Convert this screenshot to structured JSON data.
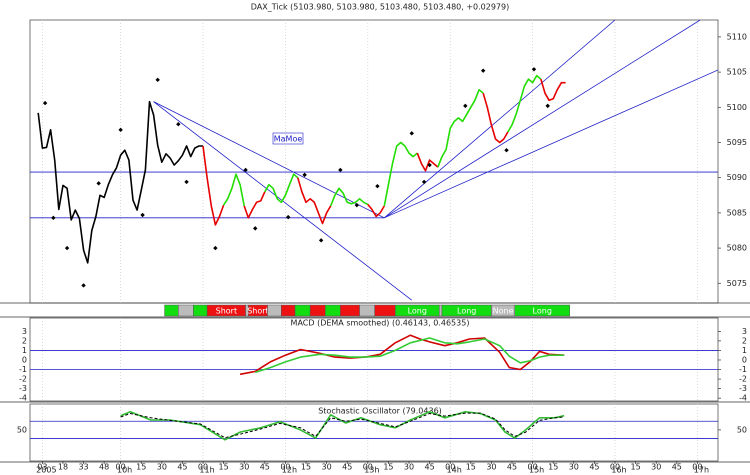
{
  "chart_data": [
    {
      "type": "line",
      "title": "DAX_Tick (5103.980, 5103.980, 5103.480, 5103.480, +0.02979)",
      "xlim": [
        -6,
        495
      ],
      "ylim": [
        5072.2,
        5112.4
      ],
      "yticks": [
        5075,
        5080,
        5085,
        5090,
        5095,
        5100,
        5105,
        5110
      ],
      "annotation": "MaMoe",
      "series": [
        {
          "color": "#000000",
          "x": [
            0,
            3,
            6,
            9,
            12,
            15,
            18,
            21,
            24,
            27,
            30,
            33,
            36,
            39,
            42,
            45,
            48,
            51,
            54,
            57,
            60,
            63,
            66,
            69,
            72,
            75,
            78,
            81,
            84,
            87,
            90,
            93,
            96,
            99,
            102,
            105,
            108,
            111,
            114,
            117,
            120
          ],
          "values": [
            5099.2,
            5094.2,
            5094.3,
            5096.8,
            5092.5,
            5085.5,
            5088.9,
            5088.5,
            5084.0,
            5085.4,
            5084.2,
            5079.7,
            5077.9,
            5082.5,
            5084.5,
            5087.5,
            5087.2,
            5089.0,
            5090.4,
            5091.4,
            5093.2,
            5093.9,
            5092.5,
            5086.8,
            5085.4,
            5088.2,
            5091.1,
            5100.8,
            5098.9,
            5094.6,
            5092.2,
            5093.4,
            5092.8,
            5091.8,
            5092.4,
            5093.2,
            5094.5,
            5093.0,
            5094.2,
            5094.5,
            5094.5
          ]
        },
        {
          "color": "#e60000",
          "x": [
            120,
            123,
            126,
            129,
            132,
            135
          ],
          "values": [
            5094.5,
            5090,
            5086,
            5083.3,
            5084.5,
            5086.1
          ]
        },
        {
          "color": "#22dd00",
          "x": [
            135,
            138,
            141,
            144,
            147,
            150
          ],
          "values": [
            5086.1,
            5087,
            5088.5,
            5090.5,
            5089,
            5086
          ]
        },
        {
          "color": "#e60000",
          "x": [
            150,
            153,
            156,
            159,
            162,
            165
          ],
          "values": [
            5086,
            5084.3,
            5085.5,
            5086.5,
            5086.7,
            5088
          ]
        },
        {
          "color": "#22dd00",
          "x": [
            165,
            168,
            171,
            174,
            177,
            180,
            183,
            186,
            189
          ],
          "values": [
            5088,
            5089,
            5088.5,
            5087,
            5086.5,
            5087.5,
            5089,
            5090.5,
            5090
          ]
        },
        {
          "color": "#e60000",
          "x": [
            189,
            192,
            195,
            198,
            201,
            204,
            207,
            210,
            213
          ],
          "values": [
            5090,
            5088,
            5086.5,
            5087,
            5086.5,
            5085,
            5083.5,
            5085,
            5086
          ]
        },
        {
          "color": "#22dd00",
          "x": [
            213,
            216,
            219,
            222,
            225,
            228,
            231,
            234,
            237,
            240
          ],
          "values": [
            5086,
            5087.5,
            5088.5,
            5087.8,
            5086.5,
            5086.3,
            5086.5,
            5087,
            5086.5,
            5086.2
          ]
        },
        {
          "color": "#e60000",
          "x": [
            240,
            243,
            246,
            249,
            252
          ],
          "values": [
            5086.2,
            5085.5,
            5084.5,
            5085,
            5086
          ]
        },
        {
          "color": "#22dd00",
          "x": [
            252,
            255,
            258,
            261,
            264,
            267,
            270,
            273,
            276
          ],
          "values": [
            5086,
            5089,
            5092,
            5094.5,
            5095,
            5094.5,
            5093.5,
            5093,
            5093.5
          ]
        },
        {
          "color": "#e60000",
          "x": [
            276,
            279,
            282,
            285,
            288,
            291
          ],
          "values": [
            5093.5,
            5092,
            5091,
            5092.5,
            5092,
            5091.5
          ]
        },
        {
          "color": "#22dd00",
          "x": [
            291,
            294,
            297,
            300,
            303,
            306,
            309,
            312,
            315,
            318,
            321,
            324
          ],
          "values": [
            5091.5,
            5093,
            5094,
            5097,
            5098,
            5098.5,
            5098,
            5099,
            5100,
            5101,
            5102.5,
            5102
          ]
        },
        {
          "color": "#e60000",
          "x": [
            324,
            327,
            330,
            333,
            336,
            339,
            342
          ],
          "values": [
            5102,
            5100,
            5097.5,
            5095.5,
            5095,
            5095.5,
            5096.5
          ]
        },
        {
          "color": "#22dd00",
          "x": [
            342,
            345,
            348,
            351,
            354,
            357,
            360,
            363,
            366
          ],
          "values": [
            5096.5,
            5097.5,
            5099,
            5101,
            5103,
            5104,
            5103.5,
            5104.5,
            5104
          ]
        },
        {
          "color": "#e60000",
          "x": [
            366,
            369,
            372,
            375,
            378,
            381,
            384
          ],
          "values": [
            5104,
            5102,
            5101,
            5101.2,
            5102.5,
            5103.5,
            5103.5
          ]
        }
      ],
      "markers": {
        "color": "#000000",
        "x": [
          5,
          11,
          21,
          33,
          44,
          60,
          76,
          87,
          102,
          108,
          129,
          151,
          158,
          182,
          194,
          206,
          220,
          232,
          247,
          272,
          281,
          285,
          311,
          324,
          341,
          361,
          371
        ],
        "values": [
          5100.6,
          5084.3,
          5080,
          5074.7,
          5089.2,
          5096.8,
          5084.7,
          5103.9,
          5097.6,
          5089.4,
          5080,
          5091.1,
          5082.8,
          5084.4,
          5090.4,
          5081.1,
          5091.1,
          5086.1,
          5088.8,
          5096.3,
          5089.4,
          5091.8,
          5100.2,
          5105.2,
          5093.9,
          5105.4,
          5100.2
        ]
      },
      "trendlines": {
        "color": "#2020c8",
        "lines": [
          {
            "x": [
              -6,
              495
            ],
            "values": [
              5090.8,
              5090.8
            ]
          },
          {
            "x": [
              -6,
              252
            ],
            "values": [
              5084.3,
              5084.3
            ]
          },
          {
            "x": [
              252,
              495
            ],
            "values": [
              5084.3,
              5105.3
            ]
          },
          {
            "x": [
              252,
              420
            ],
            "values": [
              5084.3,
              5112.4
            ]
          },
          {
            "x": [
              252,
              482
            ],
            "values": [
              5084.3,
              5112.4
            ]
          },
          {
            "x": [
              84,
              272
            ],
            "values": [
              5100.8,
              5072.6
            ]
          },
          {
            "x": [
              84,
              252
            ],
            "values": [
              5100.8,
              5084.3
            ]
          }
        ]
      },
      "signals": [
        {
          "start": 92,
          "end": 102,
          "color": "#11dd11"
        },
        {
          "start": 102,
          "end": 113,
          "color": "#bbbbbb"
        },
        {
          "start": 113,
          "end": 123,
          "color": "#11dd11"
        },
        {
          "start": 123,
          "end": 151,
          "color": "#ee1111",
          "label": "Short"
        },
        {
          "start": 151,
          "end": 153,
          "color": "#bbbbbb"
        },
        {
          "start": 153,
          "end": 167,
          "color": "#ee1111",
          "label": "Short"
        },
        {
          "start": 167,
          "end": 177,
          "color": "#bbbbbb"
        },
        {
          "start": 177,
          "end": 187,
          "color": "#ee1111"
        },
        {
          "start": 187,
          "end": 198,
          "color": "#11dd11"
        },
        {
          "start": 198,
          "end": 209,
          "color": "#ee1111"
        },
        {
          "start": 209,
          "end": 220,
          "color": "#11dd11"
        },
        {
          "start": 220,
          "end": 234,
          "color": "#ee1111"
        },
        {
          "start": 234,
          "end": 245,
          "color": "#bbbbbb"
        },
        {
          "start": 245,
          "end": 260,
          "color": "#ee1111"
        },
        {
          "start": 260,
          "end": 292,
          "color": "#11dd11",
          "label": "Long"
        },
        {
          "start": 292,
          "end": 294,
          "color": "#bbbbbb"
        },
        {
          "start": 294,
          "end": 330,
          "color": "#11dd11",
          "label": "Long"
        },
        {
          "start": 330,
          "end": 347,
          "color": "#bbbbbb",
          "label": "None"
        },
        {
          "start": 347,
          "end": 387,
          "color": "#11dd11",
          "label": "Long"
        }
      ]
    },
    {
      "type": "line",
      "title": "MACD (DEMA smoothed) (0.46143, 0.46535)",
      "xlim": [
        -6,
        495
      ],
      "ylim": [
        -4.3,
        4.4
      ],
      "yticks": [
        3,
        2,
        1,
        0,
        -1,
        -2,
        -3,
        -4
      ],
      "hlines": [
        1,
        -1
      ],
      "series": [
        {
          "color": "#d00000",
          "x": [
            147,
            158,
            169,
            180,
            191,
            198,
            205,
            216,
            227,
            238,
            249,
            260,
            271,
            278,
            285,
            296,
            305,
            314,
            325,
            336,
            343,
            351,
            358,
            365,
            372,
            383
          ],
          "values": [
            -1.5,
            -1.2,
            -0.2,
            0.5,
            1.1,
            0.9,
            0.7,
            0.3,
            0.2,
            0.3,
            0.6,
            1.8,
            2.6,
            2.2,
            1.9,
            1.5,
            1.8,
            2.2,
            2.3,
            0.8,
            -0.8,
            -1,
            -0.2,
            0.9,
            0.6,
            0.5
          ]
        },
        {
          "color": "#33cc33",
          "x": [
            158,
            169,
            180,
            191,
            205,
            216,
            227,
            238,
            249,
            260,
            271,
            285,
            296,
            305,
            314,
            325,
            336,
            343,
            351,
            358,
            365,
            372,
            383
          ],
          "values": [
            -1.3,
            -0.8,
            -0.2,
            0.3,
            0.6,
            0.5,
            0.3,
            0.3,
            0.4,
            1.0,
            1.8,
            2.3,
            1.8,
            1.7,
            1.9,
            2.2,
            1.5,
            0.4,
            -0.3,
            -0.1,
            0.3,
            0.5,
            0.5
          ]
        }
      ]
    },
    {
      "type": "line",
      "title": "Stochastic Oscillator (79.0436)",
      "xlim": [
        -6,
        495
      ],
      "ylim": [
        -22,
        110
      ],
      "yticks": [
        50
      ],
      "hlines": [
        70,
        30
      ],
      "series": [
        {
          "color": "#33bb33",
          "x": [
            60,
            67,
            82,
            96,
            118,
            136,
            147,
            162,
            176,
            191,
            202,
            213,
            224,
            235,
            249,
            260,
            271,
            285,
            296,
            311,
            322,
            333,
            340,
            347,
            355,
            365,
            376,
            383
          ],
          "values": [
            82.6,
            92,
            73,
            73,
            62,
            27,
            45,
            55,
            69,
            50,
            31,
            85,
            66,
            78,
            62,
            55,
            73,
            92,
            78,
            92,
            88,
            73,
            45,
            31,
            50,
            78,
            78,
            83
          ]
        },
        {
          "color": "#000000",
          "dashed": true,
          "x": [
            60,
            67,
            82,
            96,
            118,
            136,
            147,
            162,
            176,
            191,
            202,
            213,
            224,
            235,
            249,
            260,
            271,
            285,
            296,
            311,
            322,
            333,
            340,
            347,
            355,
            365,
            376,
            383
          ],
          "values": [
            80,
            88,
            78,
            72,
            64,
            32,
            40,
            52,
            65,
            55,
            35,
            78,
            70,
            75,
            65,
            57,
            70,
            88,
            82,
            89,
            89,
            75,
            50,
            35,
            45,
            72,
            78,
            80
          ]
        }
      ],
      "xticks": [
        {
          "value": 3,
          "label": "03"
        },
        {
          "value": 18,
          "label": "18"
        },
        {
          "value": 33,
          "label": "33"
        },
        {
          "value": 48,
          "label": "48"
        },
        {
          "value": 60,
          "label": "00"
        },
        {
          "value": 75,
          "label": "15"
        },
        {
          "value": 90,
          "label": "30"
        },
        {
          "value": 105,
          "label": "45"
        },
        {
          "value": 120,
          "label": "00"
        },
        {
          "value": 135,
          "label": "15"
        },
        {
          "value": 150,
          "label": "30"
        },
        {
          "value": 165,
          "label": "45"
        },
        {
          "value": 180,
          "label": "00"
        },
        {
          "value": 195,
          "label": "15"
        },
        {
          "value": 210,
          "label": "30"
        },
        {
          "value": 225,
          "label": "45"
        },
        {
          "value": 240,
          "label": "00"
        },
        {
          "value": 255,
          "label": "15"
        },
        {
          "value": 270,
          "label": "30"
        },
        {
          "value": 285,
          "label": "45"
        },
        {
          "value": 300,
          "label": "00"
        },
        {
          "value": 315,
          "label": "15"
        },
        {
          "value": 330,
          "label": "30"
        },
        {
          "value": 345,
          "label": "45"
        },
        {
          "value": 360,
          "label": "00"
        },
        {
          "value": 375,
          "label": "15"
        },
        {
          "value": 390,
          "label": "30"
        },
        {
          "value": 405,
          "label": "45"
        },
        {
          "value": 420,
          "label": "00"
        },
        {
          "value": 435,
          "label": "15"
        },
        {
          "value": 450,
          "label": "30"
        },
        {
          "value": 465,
          "label": "45"
        },
        {
          "value": 480,
          "label": "00"
        }
      ],
      "hour_labels": [
        {
          "value": 3,
          "label": "2005"
        },
        {
          "value": 60,
          "label": "10h"
        },
        {
          "value": 120,
          "label": "11h"
        },
        {
          "value": 180,
          "label": "12h"
        },
        {
          "value": 240,
          "label": "13h"
        },
        {
          "value": 300,
          "label": "14h"
        },
        {
          "value": 360,
          "label": "15h"
        },
        {
          "value": 420,
          "label": "16h"
        },
        {
          "value": 480,
          "label": "17h"
        }
      ]
    }
  ]
}
